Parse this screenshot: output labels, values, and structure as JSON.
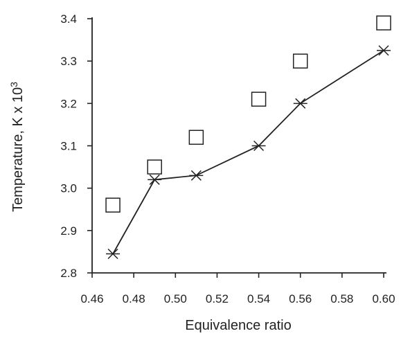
{
  "chart_data": {
    "type": "scatter",
    "xlabel": "Equivalence ratio",
    "ylabel": "Temperature, K x 10",
    "ylabel_superscript": "3",
    "xlim": [
      0.46,
      0.6
    ],
    "ylim": [
      2.8,
      3.4
    ],
    "x_ticks": [
      0.46,
      0.48,
      0.5,
      0.52,
      0.54,
      0.56,
      0.58,
      0.6
    ],
    "x_tick_labels": [
      "0.46",
      "0.48",
      "0.50",
      "0.52",
      "0.54",
      "0.56",
      "0.58",
      "0.60"
    ],
    "y_ticks": [
      2.8,
      2.9,
      3.0,
      3.1,
      3.2,
      3.3,
      3.4
    ],
    "y_tick_labels": [
      "2.8",
      "2.9",
      "3.0",
      "3.1",
      "3.2",
      "3.3",
      "3.4"
    ],
    "grid": false,
    "series": [
      {
        "marker": "square",
        "line": false,
        "x": [
          0.47,
          0.49,
          0.51,
          0.54,
          0.56,
          0.6
        ],
        "y": [
          2.96,
          3.05,
          3.12,
          3.21,
          3.3,
          3.39
        ]
      },
      {
        "marker": "star",
        "line": true,
        "x": [
          0.47,
          0.49,
          0.51,
          0.54,
          0.56,
          0.6
        ],
        "y": [
          2.845,
          3.02,
          3.03,
          3.1,
          3.2,
          3.325
        ]
      }
    ]
  }
}
